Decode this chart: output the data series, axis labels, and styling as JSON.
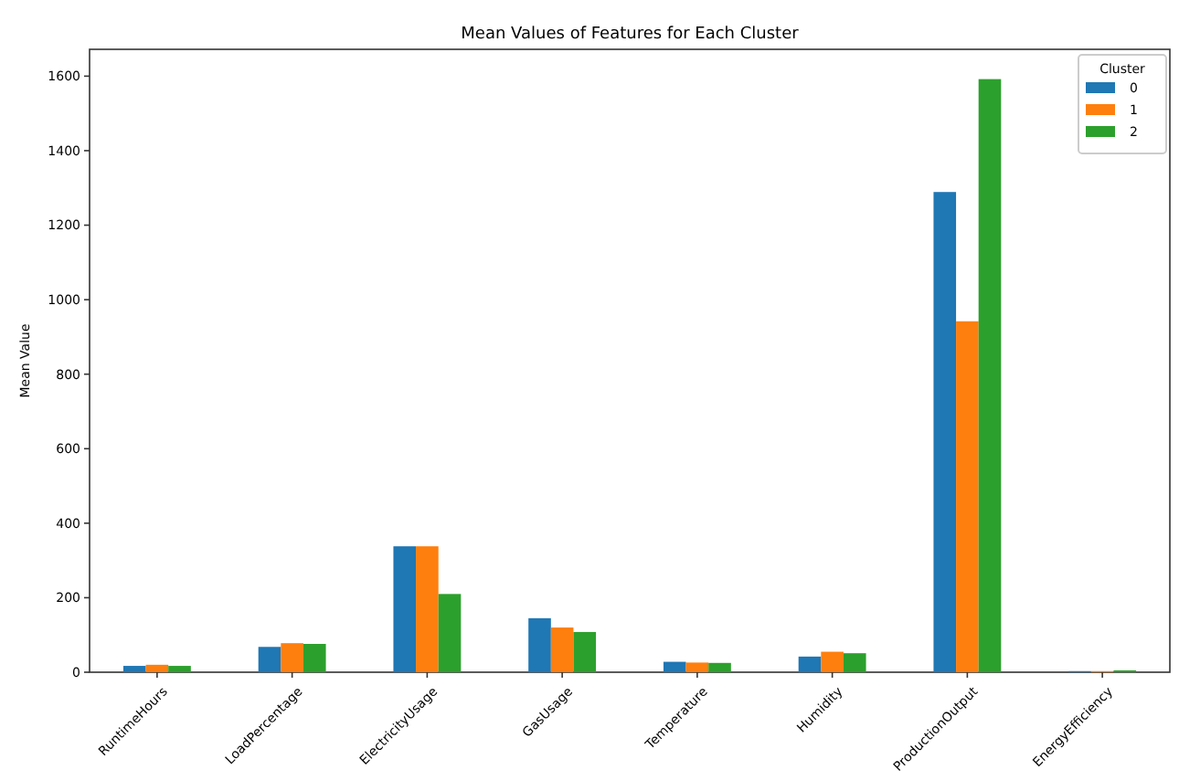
{
  "chart_data": {
    "type": "bar",
    "title": "Mean Values of Features for Each Cluster",
    "ylabel": "Mean Value",
    "legend_title": "Cluster",
    "categories": [
      "RuntimeHours",
      "LoadPercentage",
      "ElectricityUsage",
      "GasUsage",
      "Temperature",
      "Humidity",
      "ProductionOutput",
      "EnergyEfficiency"
    ],
    "series": [
      {
        "name": "0",
        "color": "#1f77b4",
        "values": [
          17,
          68,
          338,
          145,
          28,
          42,
          1289,
          3
        ]
      },
      {
        "name": "1",
        "color": "#ff7f0e",
        "values": [
          20,
          78,
          338,
          120,
          26,
          55,
          942,
          3
        ]
      },
      {
        "name": "2",
        "color": "#2ca02c",
        "values": [
          17,
          76,
          210,
          108,
          25,
          51,
          1592,
          5
        ]
      }
    ],
    "ylim": [
      0,
      1672
    ],
    "yticks": [
      0,
      200,
      400,
      600,
      800,
      1000,
      1200,
      1400,
      1600
    ],
    "legend": "top right",
    "grid": false
  }
}
